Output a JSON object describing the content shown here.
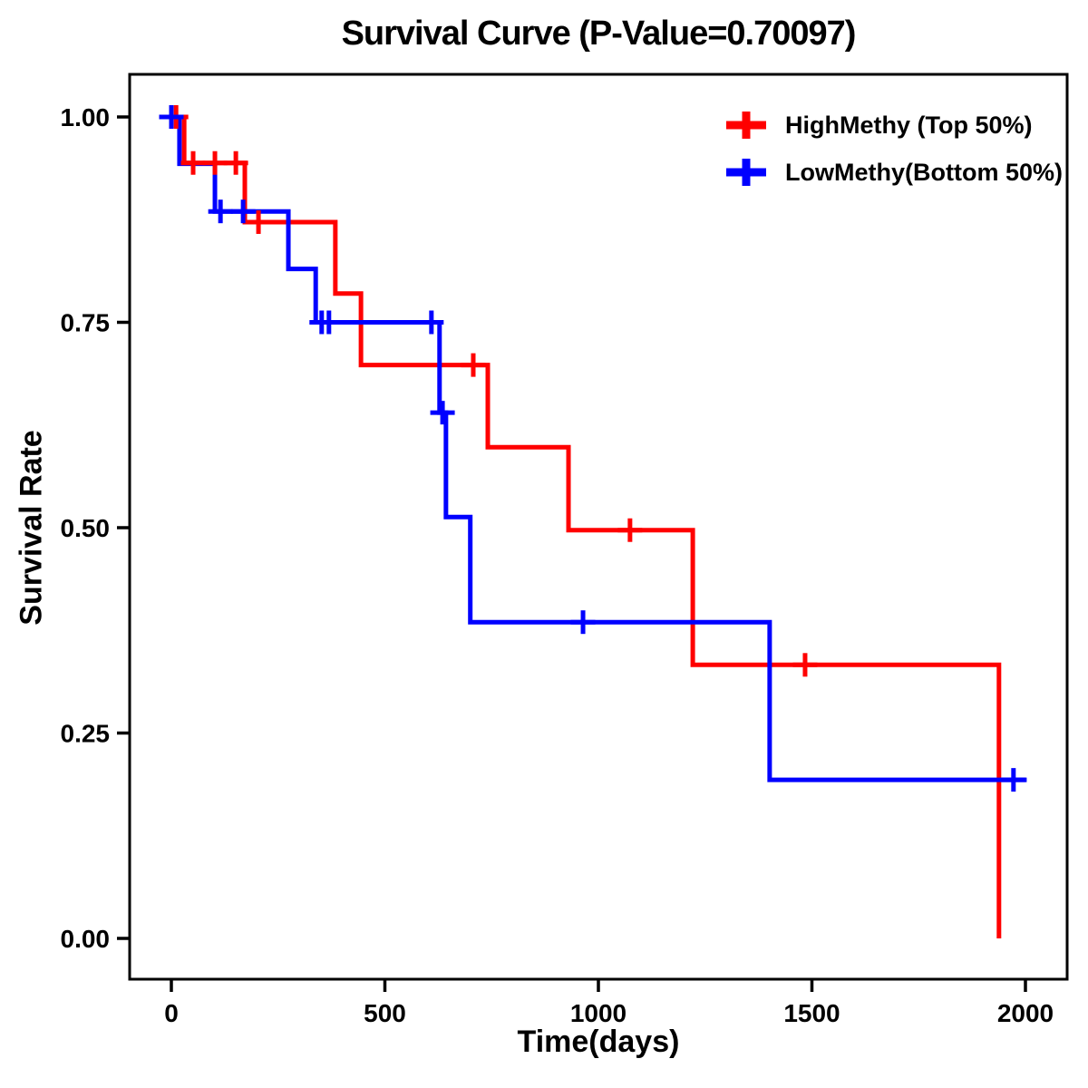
{
  "chart_data": {
    "type": "line",
    "subtype": "kaplan-meier-step-curve",
    "title": "Survival Curve (P-Value=0.70097)",
    "p_value": "0.70097",
    "xlabel": "Time(days)",
    "ylabel": "Survival Rate",
    "xlim": [
      0,
      2000
    ],
    "ylim": [
      0.0,
      1.0
    ],
    "xticks": [
      0,
      500,
      1000,
      1500,
      2000
    ],
    "yticks": [
      "0.00",
      "0.25",
      "0.50",
      "0.75",
      "1.00"
    ],
    "grid": false,
    "legend_position": "top-right",
    "background_color": "#ffffff",
    "axis_color": "#000000",
    "series": [
      {
        "name": "HighMethy (Top 50%)",
        "color": "#ff0000",
        "marker": "plus-censor",
        "steps": [
          [
            0,
            1.0
          ],
          [
            30,
            0.944
          ],
          [
            172,
            0.872
          ],
          [
            384,
            0.785
          ],
          [
            444,
            0.698
          ],
          [
            741,
            0.598
          ],
          [
            930,
            0.497
          ],
          [
            1221,
            0.333
          ],
          [
            1938,
            0.0
          ]
        ],
        "end_time": 1938,
        "censors": [
          [
            11,
            1.0
          ],
          [
            51,
            0.944
          ],
          [
            102,
            0.944
          ],
          [
            151,
            0.944
          ],
          [
            204,
            0.872
          ],
          [
            707,
            0.698
          ],
          [
            1074,
            0.497
          ],
          [
            1484,
            0.333
          ]
        ]
      },
      {
        "name": "LowMethy(Bottom 50%)",
        "color": "#0000ff",
        "marker": "plus-censor",
        "steps": [
          [
            0,
            1.0
          ],
          [
            19,
            0.943
          ],
          [
            102,
            0.885
          ],
          [
            274,
            0.815
          ],
          [
            338,
            0.75
          ],
          [
            628,
            0.64
          ],
          [
            643,
            0.513
          ],
          [
            700,
            0.385
          ],
          [
            1401,
            0.193
          ]
        ],
        "end_time": 2003,
        "censors": [
          [
            0,
            1.0
          ],
          [
            115,
            0.885
          ],
          [
            168,
            0.885
          ],
          [
            352,
            0.75
          ],
          [
            369,
            0.75
          ],
          [
            609,
            0.75
          ],
          [
            635,
            0.64
          ],
          [
            964,
            0.385
          ],
          [
            1972,
            0.193
          ]
        ]
      }
    ]
  }
}
